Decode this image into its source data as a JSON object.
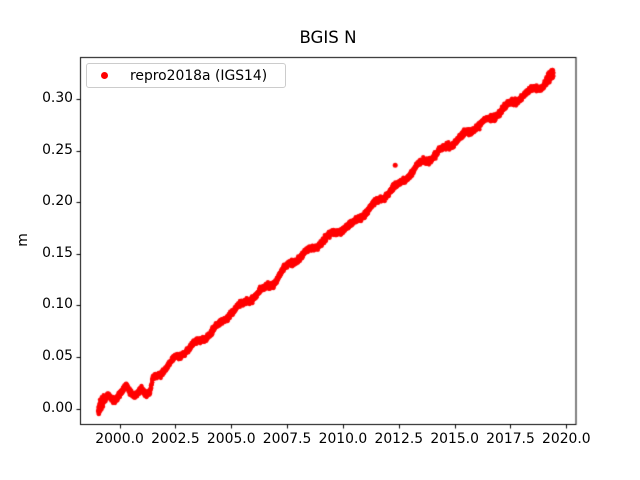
{
  "window": {
    "background": "#ffffff",
    "kind": "matplotlib-figure"
  },
  "chart_data": {
    "type": "scatter",
    "title": "BGIS N",
    "xlabel": "",
    "ylabel": "m",
    "grid": false,
    "xlim": [
      1998.23,
      2020.41
    ],
    "ylim": [
      -0.015,
      0.341
    ],
    "x_ticks": [
      2000.0,
      2002.5,
      2005.0,
      2007.5,
      2010.0,
      2012.5,
      2015.0,
      2017.5,
      2020.0
    ],
    "x_tick_labels": [
      "2000.0",
      "2002.5",
      "2005.0",
      "2007.5",
      "2010.0",
      "2012.5",
      "2015.0",
      "2017.5",
      "2020.0"
    ],
    "y_ticks": [
      0.0,
      0.05,
      0.1,
      0.15,
      0.2,
      0.25,
      0.3
    ],
    "y_tick_labels": [
      "0.00",
      "0.05",
      "0.10",
      "0.15",
      "0.20",
      "0.25",
      "0.30"
    ],
    "legend": {
      "position": "upper left",
      "entries": [
        {
          "label": "repro2018a (IGS14)",
          "color": "#ff0000",
          "marker": "dot"
        }
      ]
    },
    "colors": {
      "marker": "#ff0000",
      "axes": "#000000",
      "legend_border": "#cccccc",
      "background": "#ffffff"
    },
    "series": [
      {
        "name": "repro2018a (IGS14)",
        "color": "#ff0000",
        "marker": "dot",
        "marker_radius_px": 2.1,
        "x_start": 1999.05,
        "x_end": 2019.42,
        "approx_rate_m_per_yr": 0.0163,
        "seasonal_amplitude_m": 0.0022,
        "scatter_sigma_m": 0.0013,
        "sample_step_yr": 0.0045,
        "trend_anchors": [
          [
            1999.05,
            0.0
          ],
          [
            1999.3,
            0.006
          ],
          [
            1999.5,
            0.011
          ],
          [
            1999.75,
            0.009
          ],
          [
            2000.0,
            0.015
          ],
          [
            2000.3,
            0.021
          ],
          [
            2000.5,
            0.013
          ],
          [
            2000.7,
            0.012
          ],
          [
            2000.95,
            0.022
          ],
          [
            2001.15,
            0.014
          ],
          [
            2001.35,
            0.013
          ],
          [
            2001.5,
            0.029
          ],
          [
            2001.75,
            0.034
          ],
          [
            2002.1,
            0.04
          ],
          [
            2002.6,
            0.05
          ],
          [
            2003.0,
            0.057
          ],
          [
            2003.5,
            0.064
          ],
          [
            2004.0,
            0.072
          ],
          [
            2004.5,
            0.082
          ],
          [
            2005.0,
            0.094
          ],
          [
            2005.5,
            0.101
          ],
          [
            2006.0,
            0.109
          ],
          [
            2006.5,
            0.116
          ],
          [
            2007.0,
            0.125
          ],
          [
            2007.6,
            0.14
          ],
          [
            2008.0,
            0.146
          ],
          [
            2008.5,
            0.153
          ],
          [
            2009.0,
            0.161
          ],
          [
            2009.5,
            0.169
          ],
          [
            2010.0,
            0.175
          ],
          [
            2010.4,
            0.177
          ],
          [
            2010.75,
            0.186
          ],
          [
            2011.0,
            0.19
          ],
          [
            2011.5,
            0.2
          ],
          [
            2012.0,
            0.209
          ],
          [
            2012.5,
            0.217
          ],
          [
            2013.0,
            0.228
          ],
          [
            2013.5,
            0.238
          ],
          [
            2014.0,
            0.244
          ],
          [
            2014.5,
            0.252
          ],
          [
            2015.0,
            0.259
          ],
          [
            2015.5,
            0.266
          ],
          [
            2016.0,
            0.274
          ],
          [
            2016.6,
            0.281
          ],
          [
            2017.0,
            0.288
          ],
          [
            2017.5,
            0.295
          ],
          [
            2018.0,
            0.303
          ],
          [
            2018.5,
            0.309
          ],
          [
            2018.9,
            0.313
          ],
          [
            2019.15,
            0.319
          ],
          [
            2019.42,
            0.323
          ]
        ],
        "outliers": [
          [
            2012.34,
            0.236
          ]
        ],
        "dense_clusters": [
          {
            "from": 1999.05,
            "to": 1999.3,
            "extra_points": 80
          },
          {
            "from": 2019.1,
            "to": 2019.42,
            "extra_points": 200
          }
        ]
      }
    ]
  }
}
